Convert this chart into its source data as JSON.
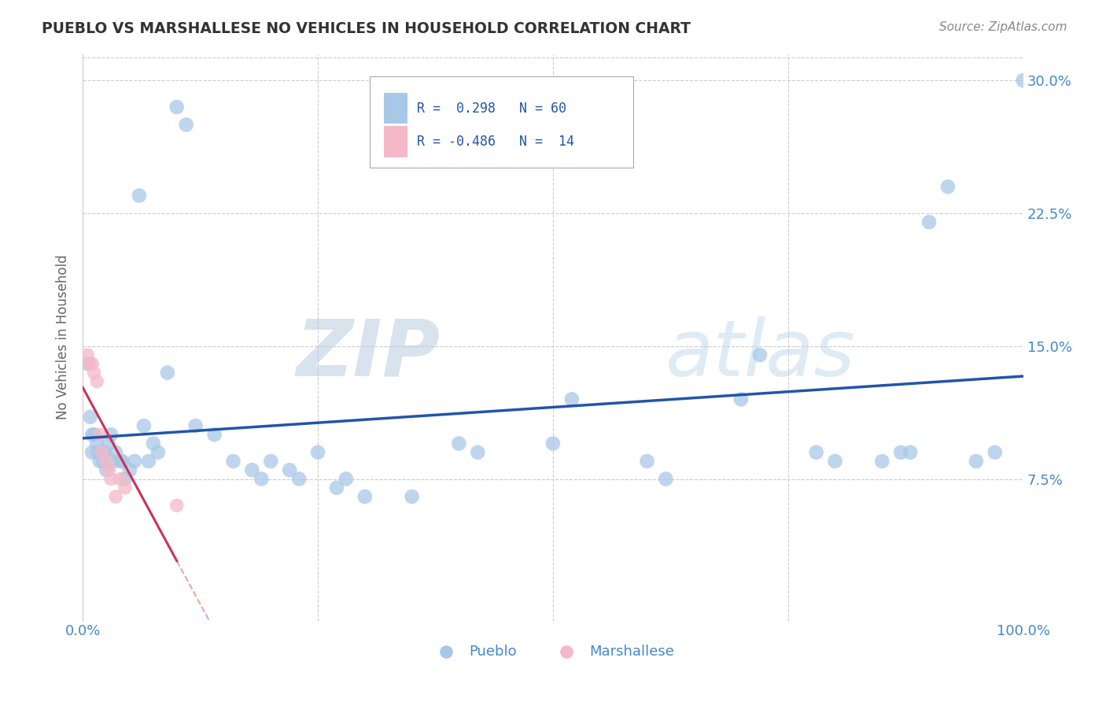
{
  "title": "PUEBLO VS MARSHALLESE NO VEHICLES IN HOUSEHOLD CORRELATION CHART",
  "source": "Source: ZipAtlas.com",
  "ylabel": "No Vehicles in Household",
  "pueblo_R": 0.298,
  "pueblo_N": 60,
  "marshallese_R": -0.486,
  "marshallese_N": 14,
  "pueblo_color": "#a8c8e8",
  "pueblo_line_color": "#2255aa",
  "marshallese_color": "#f5b8c8",
  "marshallese_line_color": "#cc3355",
  "watermark_zip": "ZIP",
  "watermark_atlas": "atlas",
  "xlim": [
    0.0,
    1.0
  ],
  "ylim": [
    -0.005,
    0.315
  ],
  "yticks": [
    0.075,
    0.15,
    0.225,
    0.3
  ],
  "ytick_labels": [
    "7.5%",
    "15.0%",
    "22.5%",
    "30.0%"
  ],
  "xtick_positions": [
    0.0,
    0.25,
    0.5,
    0.75,
    1.0
  ],
  "xtick_labels": [
    "0.0%",
    "",
    "",
    "",
    "100.0%"
  ],
  "pueblo_x": [
    0.005,
    0.008,
    0.01,
    0.01,
    0.012,
    0.015,
    0.016,
    0.018,
    0.02,
    0.022,
    0.023,
    0.025,
    0.027,
    0.03,
    0.032,
    0.035,
    0.04,
    0.042,
    0.045,
    0.05,
    0.055,
    0.06,
    0.065,
    0.07,
    0.075,
    0.08,
    0.09,
    0.1,
    0.11,
    0.12,
    0.14,
    0.16,
    0.18,
    0.19,
    0.2,
    0.22,
    0.23,
    0.25,
    0.27,
    0.28,
    0.3,
    0.35,
    0.4,
    0.42,
    0.5,
    0.52,
    0.6,
    0.62,
    0.7,
    0.72,
    0.78,
    0.8,
    0.85,
    0.87,
    0.88,
    0.9,
    0.92,
    0.95,
    0.97,
    1.0
  ],
  "pueblo_y": [
    0.14,
    0.11,
    0.1,
    0.09,
    0.1,
    0.095,
    0.09,
    0.085,
    0.09,
    0.085,
    0.09,
    0.08,
    0.095,
    0.1,
    0.085,
    0.09,
    0.085,
    0.085,
    0.075,
    0.08,
    0.085,
    0.235,
    0.105,
    0.085,
    0.095,
    0.09,
    0.135,
    0.285,
    0.275,
    0.105,
    0.1,
    0.085,
    0.08,
    0.075,
    0.085,
    0.08,
    0.075,
    0.09,
    0.07,
    0.075,
    0.065,
    0.065,
    0.095,
    0.09,
    0.095,
    0.12,
    0.085,
    0.075,
    0.12,
    0.145,
    0.09,
    0.085,
    0.085,
    0.09,
    0.09,
    0.22,
    0.24,
    0.085,
    0.09,
    0.3
  ],
  "marshallese_x": [
    0.005,
    0.008,
    0.01,
    0.012,
    0.015,
    0.018,
    0.02,
    0.025,
    0.028,
    0.03,
    0.035,
    0.04,
    0.045,
    0.1
  ],
  "marshallese_y": [
    0.145,
    0.14,
    0.14,
    0.135,
    0.13,
    0.1,
    0.09,
    0.085,
    0.08,
    0.075,
    0.065,
    0.075,
    0.07,
    0.06
  ]
}
